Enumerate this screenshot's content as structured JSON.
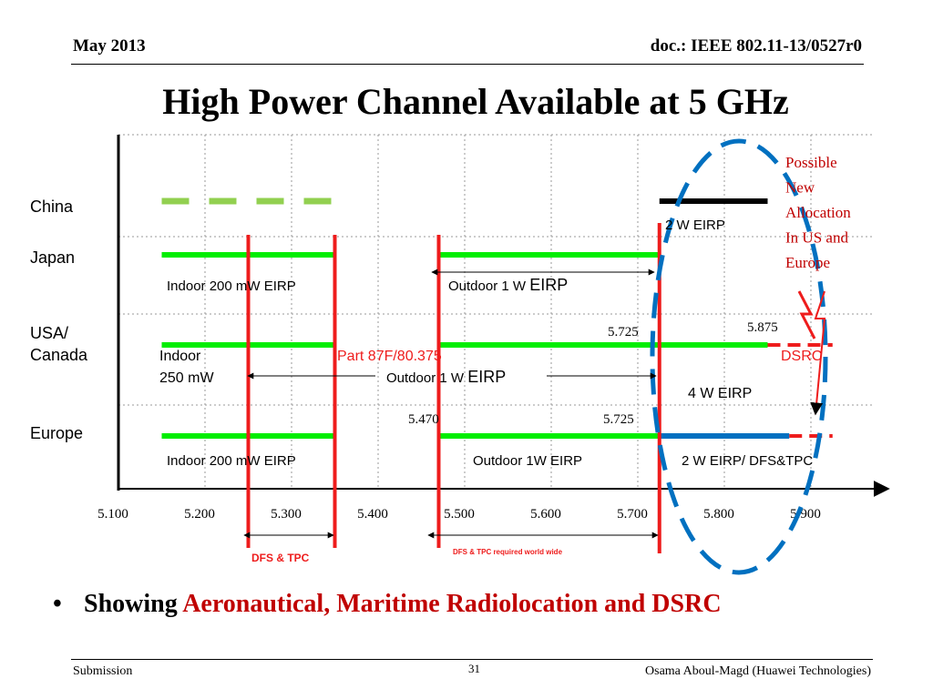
{
  "header": {
    "date": "May 2013",
    "doc": "doc.: IEEE 802.11-13/0527r0"
  },
  "title": "High Power Channel Available at 5 GHz",
  "bullet": {
    "prefix": "Showing",
    "highlight": "Aeronautical, Maritime Radiolocation and DSRC"
  },
  "footer": {
    "left": "Submission",
    "page": "31",
    "right": "Osama Aboul-Magd (Huawei Technologies)"
  },
  "colors": {
    "green": "#00ee00",
    "dash_green": "#92d050",
    "red": "#ee1c1c",
    "blue": "#0070c0",
    "dark_red": "#c00000"
  },
  "chart_data": {
    "type": "bar",
    "xlim": [
      5.1,
      5.95
    ],
    "x_ticks": [
      "5.100",
      "5.200",
      "5.300",
      "5.400",
      "5.500",
      "5.600",
      "5.700",
      "5.800",
      "5.900"
    ],
    "rows": [
      "China",
      "Japan",
      "USA/\nCanada",
      "Europe"
    ],
    "bands": [
      {
        "row": "China",
        "start": 5.15,
        "end": 5.35,
        "style": "dashed",
        "color": "dash_green"
      },
      {
        "row": "China",
        "start": 5.725,
        "end": 5.85,
        "style": "solid",
        "color": "black"
      },
      {
        "row": "Japan",
        "start": 5.15,
        "end": 5.35,
        "style": "solid",
        "color": "green"
      },
      {
        "row": "Japan",
        "start": 5.47,
        "end": 5.725,
        "style": "solid",
        "color": "green"
      },
      {
        "row": "USA/\nCanada",
        "start": 5.15,
        "end": 5.35,
        "style": "solid",
        "color": "green"
      },
      {
        "row": "USA/\nCanada",
        "start": 5.47,
        "end": 5.85,
        "style": "solid",
        "color": "green"
      },
      {
        "row": "USA/\nCanada",
        "start": 5.85,
        "end": 5.925,
        "style": "dashed",
        "color": "red"
      },
      {
        "row": "Europe",
        "start": 5.15,
        "end": 5.35,
        "style": "solid",
        "color": "green"
      },
      {
        "row": "Europe",
        "start": 5.47,
        "end": 5.725,
        "style": "solid",
        "color": "green"
      },
      {
        "row": "Europe",
        "start": 5.725,
        "end": 5.875,
        "style": "solid",
        "color": "blue"
      },
      {
        "row": "Europe",
        "start": 5.875,
        "end": 5.925,
        "style": "dashed",
        "color": "red"
      }
    ],
    "vertical_markers": [
      {
        "x": 5.25,
        "color": "red"
      },
      {
        "x": 5.35,
        "color": "red"
      },
      {
        "x": 5.47,
        "color": "red"
      },
      {
        "x": 5.725,
        "color": "red"
      }
    ],
    "labels": {
      "china_eirp": "2 W EIRP",
      "japan_indoor": "Indoor  200 mW EIRP",
      "japan_outdoor": "Outdoor 1 W",
      "japan_outdoor_eirp": "EIRP",
      "us_5725": "5.725",
      "us_5875": "5.875",
      "us_indoor": "Indoor",
      "us_250mw": "250 mW",
      "us_part87": "Part 87F/80.375",
      "us_outdoor": "Outdoor 1 W",
      "us_outdoor_eirp": "EIRP",
      "us_dsrc": "DSRC",
      "us_4w": "4 W EIRP",
      "eu_5470": "5.470",
      "eu_5725": "5.725",
      "eu_indoor": "Indoor 200 mW EIRP",
      "eu_outdoor": "Outdoor 1W EIRP",
      "eu_2w": "2 W EIRP/ DFS&TPC",
      "dfs_tpc": "DFS & TPC",
      "dfs_world": "DFS & TPC required world wide",
      "possible": "Possible\nNew\nAllocation\nIn US and\nEurope"
    }
  }
}
